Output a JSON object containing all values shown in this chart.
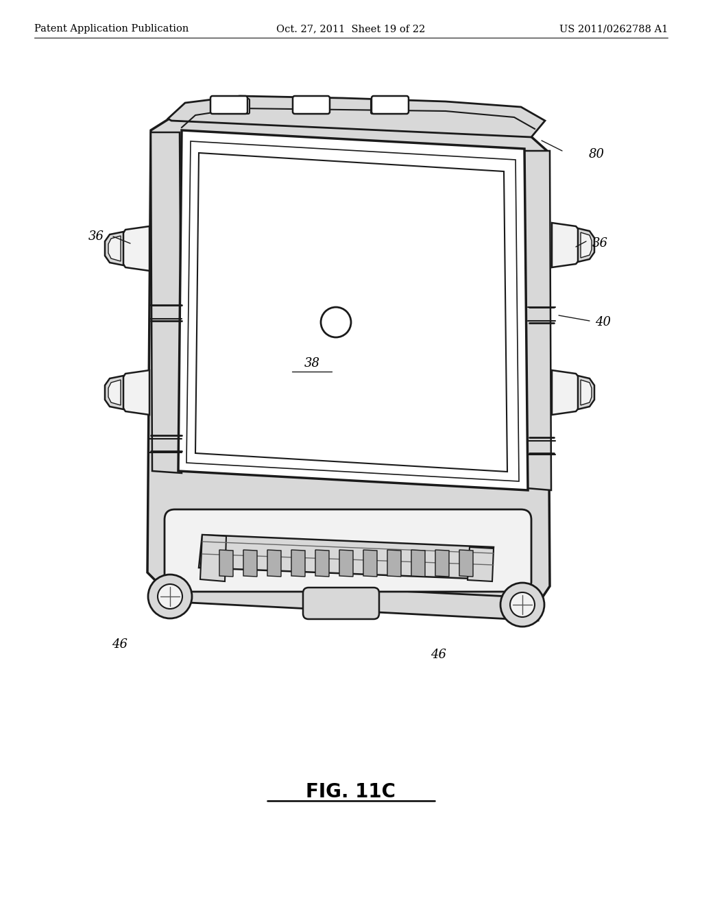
{
  "background_color": "#ffffff",
  "header_left": "Patent Application Publication",
  "header_center": "Oct. 27, 2011  Sheet 19 of 22",
  "header_right": "US 2011/0262788 A1",
  "figure_label": "FIG. 11C",
  "header_fontsize": 10.5,
  "fig_label_fontsize": 20,
  "ref_fontsize": 13,
  "outline_color": "#1a1a1a",
  "fill_white": "#ffffff",
  "fill_light": "#f2f2f2",
  "fill_mid": "#d8d8d8",
  "fill_dark": "#b0b0b0"
}
